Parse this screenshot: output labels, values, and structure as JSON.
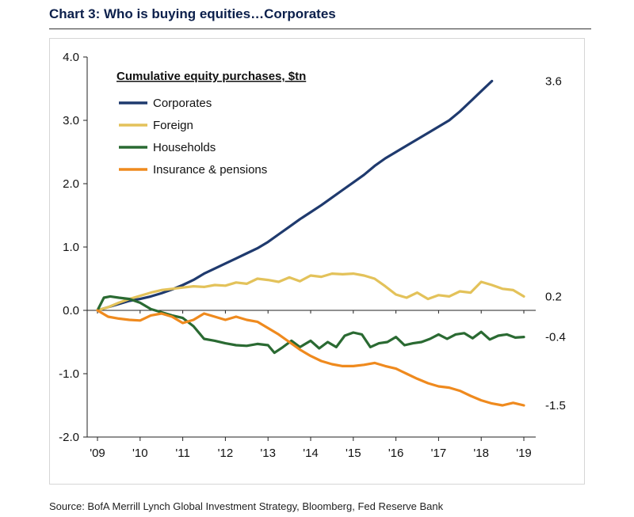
{
  "title": "Chart 3: Who is buying equities…Corporates",
  "source": "Source: BofA Merrill Lynch Global Investment Strategy, Bloomberg, Fed Reserve Bank",
  "chart_data": {
    "type": "line",
    "legend_title": "Cumulative equity purchases, $tn",
    "legend_position": "top-left",
    "ylim": [
      -2.0,
      4.0
    ],
    "yticks": [
      -2.0,
      -1.0,
      0.0,
      1.0,
      2.0,
      3.0,
      4.0
    ],
    "ytick_labels": [
      "-2.0",
      "-1.0",
      "0.0",
      "1.0",
      "2.0",
      "3.0",
      "4.0"
    ],
    "xlim": [
      2009,
      2019.25
    ],
    "xticks": [
      2009,
      2010,
      2011,
      2012,
      2013,
      2014,
      2015,
      2016,
      2017,
      2018,
      2019
    ],
    "xtick_labels": [
      "'09",
      "'10",
      "'11",
      "'12",
      "'13",
      "'14",
      "'15",
      "'16",
      "'17",
      "'18",
      "'19"
    ],
    "grid": false,
    "series": [
      {
        "name": "Corporates",
        "color": "#1f3a6e",
        "end_label": "3.6",
        "points": [
          [
            2009.0,
            0.0
          ],
          [
            2009.25,
            0.05
          ],
          [
            2009.5,
            0.1
          ],
          [
            2009.75,
            0.15
          ],
          [
            2010.0,
            0.18
          ],
          [
            2010.25,
            0.22
          ],
          [
            2010.5,
            0.27
          ],
          [
            2010.75,
            0.33
          ],
          [
            2011.0,
            0.4
          ],
          [
            2011.25,
            0.48
          ],
          [
            2011.5,
            0.58
          ],
          [
            2011.75,
            0.66
          ],
          [
            2012.0,
            0.74
          ],
          [
            2012.25,
            0.82
          ],
          [
            2012.5,
            0.9
          ],
          [
            2012.75,
            0.98
          ],
          [
            2013.0,
            1.08
          ],
          [
            2013.25,
            1.2
          ],
          [
            2013.5,
            1.32
          ],
          [
            2013.75,
            1.44
          ],
          [
            2014.0,
            1.55
          ],
          [
            2014.25,
            1.66
          ],
          [
            2014.5,
            1.78
          ],
          [
            2014.75,
            1.9
          ],
          [
            2015.0,
            2.02
          ],
          [
            2015.25,
            2.14
          ],
          [
            2015.5,
            2.28
          ],
          [
            2015.75,
            2.4
          ],
          [
            2016.0,
            2.5
          ],
          [
            2016.25,
            2.6
          ],
          [
            2016.5,
            2.7
          ],
          [
            2016.75,
            2.8
          ],
          [
            2017.0,
            2.9
          ],
          [
            2017.25,
            3.0
          ],
          [
            2017.5,
            3.14
          ],
          [
            2017.75,
            3.3
          ],
          [
            2018.0,
            3.46
          ],
          [
            2018.25,
            3.62
          ]
        ]
      },
      {
        "name": "Foreign",
        "color": "#e3c25a",
        "end_label": "0.2",
        "points": [
          [
            2009.0,
            0.0
          ],
          [
            2009.25,
            0.05
          ],
          [
            2009.5,
            0.12
          ],
          [
            2009.75,
            0.18
          ],
          [
            2010.0,
            0.23
          ],
          [
            2010.25,
            0.28
          ],
          [
            2010.5,
            0.32
          ],
          [
            2010.75,
            0.34
          ],
          [
            2011.0,
            0.36
          ],
          [
            2011.25,
            0.38
          ],
          [
            2011.5,
            0.37
          ],
          [
            2011.75,
            0.4
          ],
          [
            2012.0,
            0.39
          ],
          [
            2012.25,
            0.44
          ],
          [
            2012.5,
            0.42
          ],
          [
            2012.75,
            0.5
          ],
          [
            2013.0,
            0.48
          ],
          [
            2013.25,
            0.45
          ],
          [
            2013.5,
            0.52
          ],
          [
            2013.75,
            0.46
          ],
          [
            2014.0,
            0.55
          ],
          [
            2014.25,
            0.53
          ],
          [
            2014.5,
            0.58
          ],
          [
            2014.75,
            0.57
          ],
          [
            2015.0,
            0.58
          ],
          [
            2015.25,
            0.55
          ],
          [
            2015.5,
            0.5
          ],
          [
            2015.75,
            0.38
          ],
          [
            2016.0,
            0.25
          ],
          [
            2016.25,
            0.2
          ],
          [
            2016.5,
            0.28
          ],
          [
            2016.75,
            0.18
          ],
          [
            2017.0,
            0.24
          ],
          [
            2017.25,
            0.22
          ],
          [
            2017.5,
            0.3
          ],
          [
            2017.75,
            0.28
          ],
          [
            2018.0,
            0.45
          ],
          [
            2018.25,
            0.4
          ],
          [
            2018.5,
            0.34
          ],
          [
            2018.75,
            0.32
          ],
          [
            2019.0,
            0.22
          ]
        ]
      },
      {
        "name": "Households",
        "color": "#2a6a32",
        "end_label": "-0.4",
        "points": [
          [
            2009.0,
            0.0
          ],
          [
            2009.15,
            0.2
          ],
          [
            2009.3,
            0.22
          ],
          [
            2009.5,
            0.2
          ],
          [
            2009.75,
            0.18
          ],
          [
            2010.0,
            0.12
          ],
          [
            2010.25,
            0.02
          ],
          [
            2010.5,
            -0.03
          ],
          [
            2010.75,
            -0.08
          ],
          [
            2011.0,
            -0.12
          ],
          [
            2011.25,
            -0.25
          ],
          [
            2011.5,
            -0.45
          ],
          [
            2011.75,
            -0.48
          ],
          [
            2012.0,
            -0.52
          ],
          [
            2012.25,
            -0.55
          ],
          [
            2012.5,
            -0.56
          ],
          [
            2012.75,
            -0.53
          ],
          [
            2013.0,
            -0.55
          ],
          [
            2013.15,
            -0.67
          ],
          [
            2013.35,
            -0.58
          ],
          [
            2013.55,
            -0.48
          ],
          [
            2013.75,
            -0.58
          ],
          [
            2014.0,
            -0.48
          ],
          [
            2014.2,
            -0.6
          ],
          [
            2014.4,
            -0.5
          ],
          [
            2014.6,
            -0.58
          ],
          [
            2014.8,
            -0.4
          ],
          [
            2015.0,
            -0.35
          ],
          [
            2015.2,
            -0.38
          ],
          [
            2015.4,
            -0.58
          ],
          [
            2015.6,
            -0.52
          ],
          [
            2015.8,
            -0.5
          ],
          [
            2016.0,
            -0.42
          ],
          [
            2016.2,
            -0.55
          ],
          [
            2016.4,
            -0.52
          ],
          [
            2016.6,
            -0.5
          ],
          [
            2016.8,
            -0.45
          ],
          [
            2017.0,
            -0.38
          ],
          [
            2017.2,
            -0.45
          ],
          [
            2017.4,
            -0.38
          ],
          [
            2017.6,
            -0.36
          ],
          [
            2017.8,
            -0.44
          ],
          [
            2018.0,
            -0.34
          ],
          [
            2018.2,
            -0.46
          ],
          [
            2018.4,
            -0.4
          ],
          [
            2018.6,
            -0.38
          ],
          [
            2018.8,
            -0.43
          ],
          [
            2019.0,
            -0.42
          ]
        ]
      },
      {
        "name": "Insurance & pensions",
        "color": "#ef8a1e",
        "end_label": "-1.5",
        "points": [
          [
            2009.0,
            0.0
          ],
          [
            2009.25,
            -0.1
          ],
          [
            2009.5,
            -0.13
          ],
          [
            2009.75,
            -0.15
          ],
          [
            2010.0,
            -0.16
          ],
          [
            2010.25,
            -0.08
          ],
          [
            2010.5,
            -0.05
          ],
          [
            2010.75,
            -0.1
          ],
          [
            2011.0,
            -0.2
          ],
          [
            2011.25,
            -0.15
          ],
          [
            2011.5,
            -0.05
          ],
          [
            2011.75,
            -0.1
          ],
          [
            2012.0,
            -0.15
          ],
          [
            2012.25,
            -0.1
          ],
          [
            2012.5,
            -0.15
          ],
          [
            2012.75,
            -0.18
          ],
          [
            2013.0,
            -0.28
          ],
          [
            2013.25,
            -0.38
          ],
          [
            2013.5,
            -0.5
          ],
          [
            2013.75,
            -0.62
          ],
          [
            2014.0,
            -0.72
          ],
          [
            2014.25,
            -0.8
          ],
          [
            2014.5,
            -0.85
          ],
          [
            2014.75,
            -0.88
          ],
          [
            2015.0,
            -0.88
          ],
          [
            2015.25,
            -0.86
          ],
          [
            2015.5,
            -0.83
          ],
          [
            2015.75,
            -0.88
          ],
          [
            2016.0,
            -0.92
          ],
          [
            2016.25,
            -1.0
          ],
          [
            2016.5,
            -1.08
          ],
          [
            2016.75,
            -1.15
          ],
          [
            2017.0,
            -1.2
          ],
          [
            2017.25,
            -1.22
          ],
          [
            2017.5,
            -1.27
          ],
          [
            2017.75,
            -1.35
          ],
          [
            2018.0,
            -1.42
          ],
          [
            2018.25,
            -1.47
          ],
          [
            2018.5,
            -1.5
          ],
          [
            2018.75,
            -1.46
          ],
          [
            2019.0,
            -1.5
          ]
        ]
      }
    ]
  }
}
